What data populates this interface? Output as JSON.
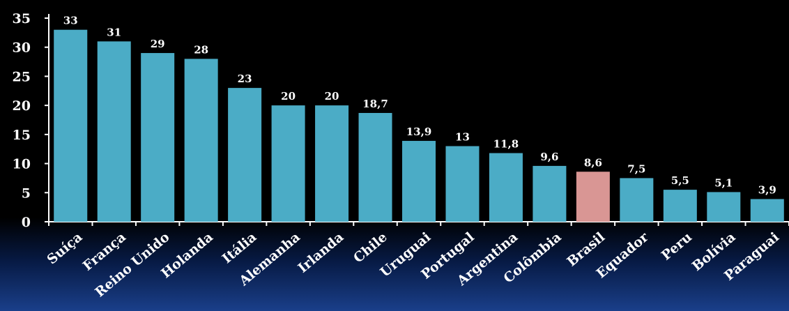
{
  "chart_data": {
    "type": "bar",
    "categories": [
      "Suíça",
      "França",
      "Reino Unido",
      "Holanda",
      "Itália",
      "Alemanha",
      "Irlanda",
      "Chile",
      "Uruguai",
      "Portugal",
      "Argentina",
      "Colômbia",
      "Brasil",
      "Equador",
      "Peru",
      "Bolívia",
      "Paraguai"
    ],
    "values": [
      33,
      31,
      29,
      28,
      23,
      20,
      20,
      18.7,
      13.9,
      13,
      11.8,
      9.6,
      8.6,
      7.5,
      5.5,
      5.1,
      3.9
    ],
    "value_labels": [
      "33",
      "31",
      "29",
      "28",
      "23",
      "20",
      "20",
      "18,7",
      "13,9",
      "13",
      "11,8",
      "9,6",
      "8,6",
      "7,5",
      "5,5",
      "5,1",
      "3,9"
    ],
    "yticks": [
      "0",
      "5",
      "10",
      "15",
      "20",
      "25",
      "30",
      "35"
    ],
    "ylim": [
      0,
      35
    ],
    "title": "",
    "xlabel": "",
    "ylabel": "",
    "grid": false,
    "colors": {
      "bar": "#4bacc6",
      "highlight": "#d99694",
      "axis": "#ffffff",
      "text": "#ffffff"
    },
    "highlight_category": "Brasil"
  }
}
